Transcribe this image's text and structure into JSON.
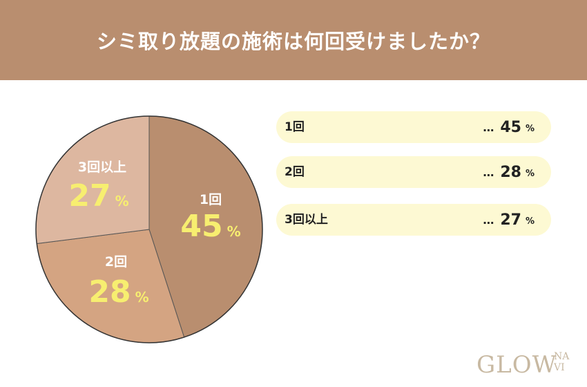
{
  "header": {
    "title": "シミ取り放題の施術は何回受けましたか？"
  },
  "chart_data": {
    "type": "pie",
    "title": "シミ取り放題の施術は何回受けましたか？",
    "unit": "%",
    "slices": [
      {
        "label": "1回",
        "value": 45,
        "color": "#b98e6f"
      },
      {
        "label": "2回",
        "value": 28,
        "color": "#d4a482"
      },
      {
        "label": "3回以上",
        "value": 27,
        "color": "#ddb7a0"
      }
    ],
    "legend": {
      "dots": "…",
      "items": [
        {
          "label": "1回",
          "value": "45",
          "unit": "%"
        },
        {
          "label": "2回",
          "value": "28",
          "unit": "%"
        },
        {
          "label": "3回以上",
          "value": "27",
          "unit": "%"
        }
      ]
    }
  },
  "logo": {
    "main": "GLOW",
    "sub": "NA VI"
  }
}
